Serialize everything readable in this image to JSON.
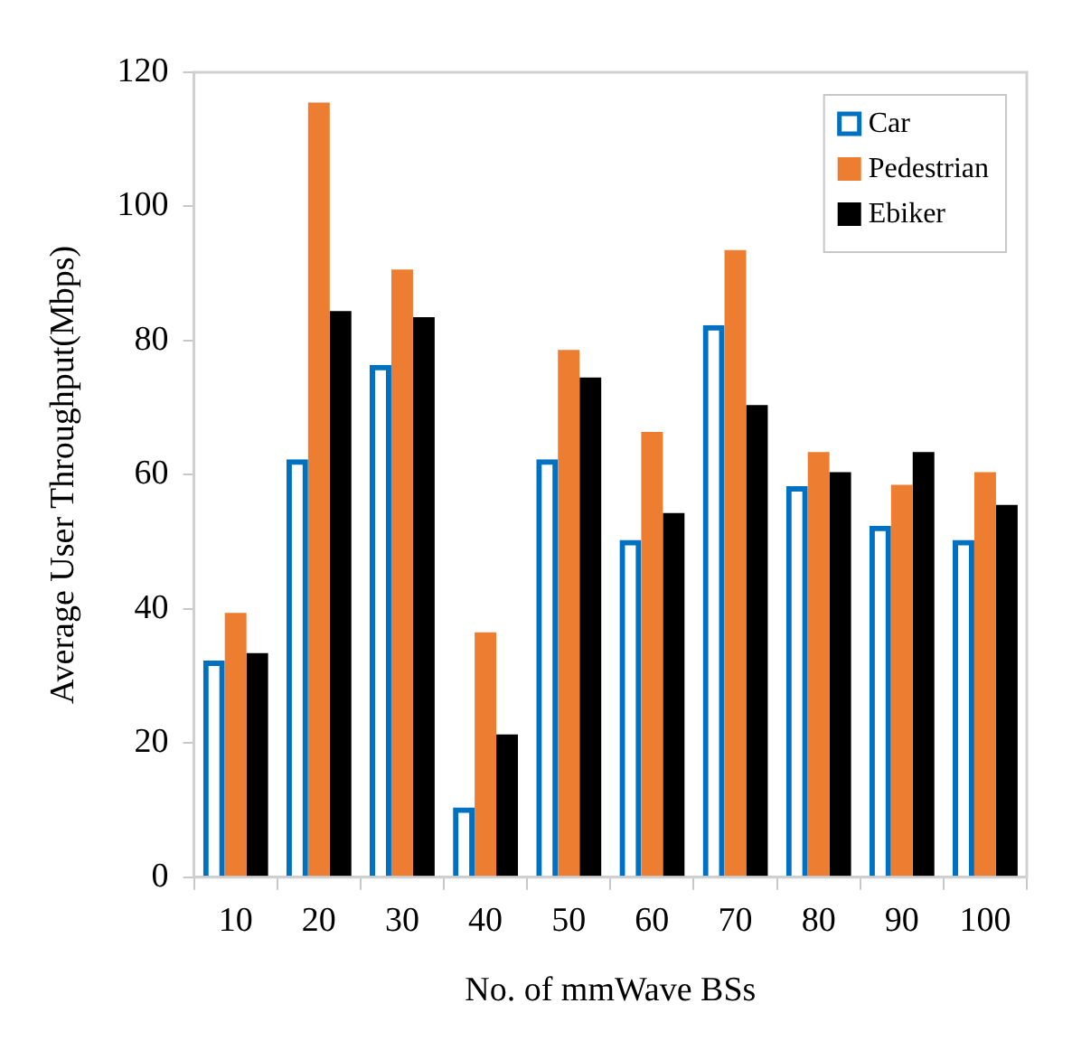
{
  "chart_data": {
    "type": "bar",
    "xlabel": "No. of mmWave BSs",
    "ylabel": "Average User Throughput(Mbps)",
    "categories": [
      "10",
      "20",
      "30",
      "40",
      "50",
      "60",
      "70",
      "80",
      "90",
      "100"
    ],
    "series": [
      {
        "name": "Car",
        "color": "#0070c0",
        "values": [
          32.3,
          62.3,
          76.4,
          10.4,
          62.3,
          50.3,
          82.3,
          58.3,
          52.4,
          50.3
        ]
      },
      {
        "name": "Pedestrian",
        "color": "#ed7d31",
        "values": [
          39.4,
          115.5,
          90.6,
          36.5,
          78.6,
          66.4,
          93.5,
          63.4,
          58.5,
          60.4
        ]
      },
      {
        "name": "Ebiker",
        "color": "#000000",
        "values": [
          33.4,
          84.4,
          83.5,
          21.3,
          74.5,
          54.3,
          70.4,
          60.4,
          63.4,
          55.5
        ]
      }
    ],
    "ylim": [
      0,
      120
    ],
    "yticks": [
      0,
      20,
      40,
      60,
      80,
      100,
      120
    ],
    "grid": false,
    "legend": "top right"
  }
}
